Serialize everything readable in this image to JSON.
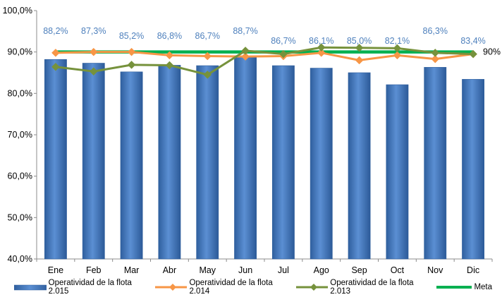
{
  "chart_data": {
    "type": "bar",
    "categories": [
      "Ene",
      "Feb",
      "Mar",
      "Abr",
      "May",
      "Jun",
      "Jul",
      "Ago",
      "Sep",
      "Oct",
      "Nov",
      "Dic"
    ],
    "ylim": [
      40,
      100
    ],
    "yticks": [
      "40,0%",
      "50,0%",
      "60,0%",
      "70,0%",
      "80,0%",
      "90,0%",
      "100,0%"
    ],
    "grid": false,
    "legend_position": "bottom",
    "series": [
      {
        "name": "Operatividad de la flota 2.015",
        "type": "bar",
        "color": "#4f81bd",
        "values": [
          88.2,
          87.3,
          85.2,
          86.8,
          86.7,
          88.7,
          86.7,
          86.1,
          85.0,
          82.1,
          86.3,
          83.4
        ],
        "labels": [
          "88,2%",
          "87,3%",
          "85,2%",
          "86,8%",
          "86,7%",
          "88,7%",
          "86,7%",
          "86,1%",
          "85,0%",
          "82,1%",
          "86,3%",
          "83,4%"
        ]
      },
      {
        "name": "Operatividad de la flota 2.014",
        "type": "line",
        "color": "#f79646",
        "values": [
          89.8,
          90.0,
          90.0,
          89.2,
          89.0,
          88.9,
          89.0,
          89.8,
          88.0,
          89.2,
          88.3,
          89.5
        ]
      },
      {
        "name": "Operatividad de la flota 2.013",
        "type": "line",
        "color": "#76923c",
        "values": [
          86.4,
          85.3,
          86.9,
          86.8,
          84.5,
          90.3,
          89.5,
          91.1,
          91.0,
          90.9,
          89.8,
          89.5
        ]
      },
      {
        "name": "Meta",
        "type": "line",
        "color": "#00b050",
        "values": [
          90,
          90,
          90,
          90,
          90,
          90,
          90,
          90,
          90,
          90,
          90,
          90
        ],
        "end_label": "90%"
      }
    ]
  }
}
